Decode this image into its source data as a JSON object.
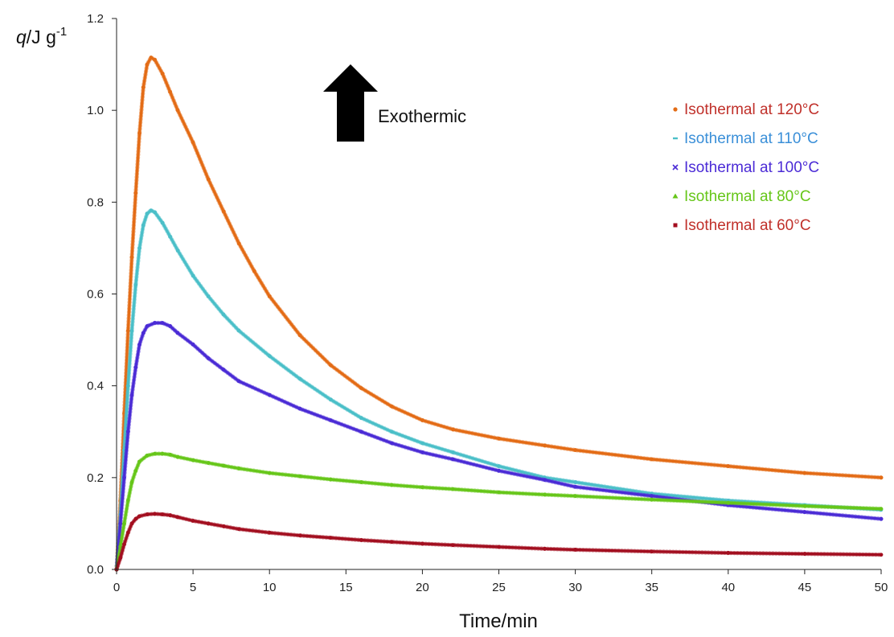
{
  "chart_data": {
    "type": "scatter",
    "xlabel": "Time/min",
    "ylabel": {
      "italic": "q",
      "main": "/J g",
      "sup": "-1"
    },
    "xlim": [
      0,
      50
    ],
    "ylim": [
      0,
      1.2
    ],
    "x_ticks": [
      "0",
      "5",
      "10",
      "15",
      "20",
      "25",
      "30",
      "35",
      "40",
      "45",
      "50"
    ],
    "y_ticks": [
      "0.0",
      "0.2",
      "0.4",
      "0.6",
      "0.8",
      "1.0",
      "1.2"
    ],
    "grid": false,
    "legend_position": "top-right",
    "annotation": {
      "text": "Exothermic",
      "marker": "up-arrow"
    },
    "series": [
      {
        "name": "Isothermal at 120°C",
        "color": "#E36C16",
        "label_color": "#C0302A",
        "marker": "circle",
        "points": [
          [
            0,
            0
          ],
          [
            0.25,
            0.15
          ],
          [
            0.5,
            0.34
          ],
          [
            0.75,
            0.52
          ],
          [
            1,
            0.68
          ],
          [
            1.25,
            0.82
          ],
          [
            1.5,
            0.95
          ],
          [
            1.75,
            1.05
          ],
          [
            2,
            1.1
          ],
          [
            2.25,
            1.115
          ],
          [
            2.5,
            1.11
          ],
          [
            3,
            1.08
          ],
          [
            3.5,
            1.04
          ],
          [
            4,
            1.0
          ],
          [
            5,
            0.93
          ],
          [
            6,
            0.85
          ],
          [
            7,
            0.78
          ],
          [
            8,
            0.71
          ],
          [
            9,
            0.65
          ],
          [
            10,
            0.595
          ],
          [
            12,
            0.51
          ],
          [
            14,
            0.445
          ],
          [
            16,
            0.395
          ],
          [
            18,
            0.355
          ],
          [
            20,
            0.325
          ],
          [
            22,
            0.305
          ],
          [
            25,
            0.285
          ],
          [
            28,
            0.27
          ],
          [
            30,
            0.26
          ],
          [
            35,
            0.24
          ],
          [
            40,
            0.225
          ],
          [
            45,
            0.21
          ],
          [
            50,
            0.2
          ]
        ]
      },
      {
        "name": "Isothermal at 110°C",
        "color": "#4BBFC8",
        "label_color": "#3A8FD8",
        "marker": "dash",
        "points": [
          [
            0,
            0
          ],
          [
            0.25,
            0.12
          ],
          [
            0.5,
            0.26
          ],
          [
            0.75,
            0.4
          ],
          [
            1,
            0.52
          ],
          [
            1.25,
            0.62
          ],
          [
            1.5,
            0.7
          ],
          [
            1.75,
            0.75
          ],
          [
            2,
            0.775
          ],
          [
            2.25,
            0.782
          ],
          [
            2.5,
            0.778
          ],
          [
            3,
            0.755
          ],
          [
            3.5,
            0.725
          ],
          [
            4,
            0.695
          ],
          [
            5,
            0.64
          ],
          [
            6,
            0.595
          ],
          [
            7,
            0.555
          ],
          [
            8,
            0.52
          ],
          [
            10,
            0.465
          ],
          [
            12,
            0.415
          ],
          [
            14,
            0.37
          ],
          [
            16,
            0.33
          ],
          [
            18,
            0.3
          ],
          [
            20,
            0.275
          ],
          [
            22,
            0.255
          ],
          [
            25,
            0.225
          ],
          [
            28,
            0.2
          ],
          [
            30,
            0.19
          ],
          [
            35,
            0.165
          ],
          [
            40,
            0.15
          ],
          [
            45,
            0.14
          ],
          [
            50,
            0.13
          ]
        ]
      },
      {
        "name": "Isothermal at 100°C",
        "color": "#4B2BD6",
        "label_color": "#4B2BD6",
        "marker": "x",
        "points": [
          [
            0,
            0
          ],
          [
            0.25,
            0.1
          ],
          [
            0.5,
            0.2
          ],
          [
            0.75,
            0.3
          ],
          [
            1,
            0.38
          ],
          [
            1.25,
            0.44
          ],
          [
            1.5,
            0.49
          ],
          [
            1.75,
            0.515
          ],
          [
            2,
            0.53
          ],
          [
            2.5,
            0.537
          ],
          [
            3,
            0.537
          ],
          [
            3.5,
            0.53
          ],
          [
            4,
            0.515
          ],
          [
            5,
            0.49
          ],
          [
            6,
            0.46
          ],
          [
            7,
            0.435
          ],
          [
            8,
            0.41
          ],
          [
            10,
            0.38
          ],
          [
            12,
            0.35
          ],
          [
            14,
            0.325
          ],
          [
            16,
            0.3
          ],
          [
            18,
            0.275
          ],
          [
            20,
            0.255
          ],
          [
            22,
            0.24
          ],
          [
            25,
            0.215
          ],
          [
            28,
            0.195
          ],
          [
            30,
            0.18
          ],
          [
            35,
            0.16
          ],
          [
            40,
            0.14
          ],
          [
            45,
            0.125
          ],
          [
            50,
            0.11
          ]
        ]
      },
      {
        "name": "Isothermal at 80°C",
        "color": "#66C619",
        "label_color": "#66C619",
        "marker": "triangle",
        "points": [
          [
            0,
            0
          ],
          [
            0.25,
            0.05
          ],
          [
            0.5,
            0.1
          ],
          [
            0.75,
            0.15
          ],
          [
            1,
            0.19
          ],
          [
            1.25,
            0.215
          ],
          [
            1.5,
            0.235
          ],
          [
            2,
            0.248
          ],
          [
            2.5,
            0.252
          ],
          [
            3,
            0.252
          ],
          [
            3.5,
            0.25
          ],
          [
            4,
            0.245
          ],
          [
            5,
            0.238
          ],
          [
            6,
            0.232
          ],
          [
            7,
            0.226
          ],
          [
            8,
            0.22
          ],
          [
            10,
            0.21
          ],
          [
            12,
            0.203
          ],
          [
            14,
            0.196
          ],
          [
            16,
            0.19
          ],
          [
            18,
            0.184
          ],
          [
            20,
            0.179
          ],
          [
            22,
            0.175
          ],
          [
            25,
            0.168
          ],
          [
            28,
            0.163
          ],
          [
            30,
            0.16
          ],
          [
            35,
            0.152
          ],
          [
            40,
            0.145
          ],
          [
            45,
            0.138
          ],
          [
            50,
            0.132
          ]
        ]
      },
      {
        "name": "Isothermal at 60°C",
        "color": "#A30E1F",
        "label_color": "#C0302A",
        "marker": "square",
        "points": [
          [
            0,
            0
          ],
          [
            0.25,
            0.025
          ],
          [
            0.5,
            0.055
          ],
          [
            0.75,
            0.08
          ],
          [
            1,
            0.1
          ],
          [
            1.25,
            0.11
          ],
          [
            1.5,
            0.116
          ],
          [
            2,
            0.12
          ],
          [
            2.5,
            0.121
          ],
          [
            3,
            0.12
          ],
          [
            3.5,
            0.118
          ],
          [
            4,
            0.114
          ],
          [
            5,
            0.106
          ],
          [
            6,
            0.1
          ],
          [
            7,
            0.094
          ],
          [
            8,
            0.088
          ],
          [
            10,
            0.08
          ],
          [
            12,
            0.074
          ],
          [
            14,
            0.069
          ],
          [
            16,
            0.064
          ],
          [
            18,
            0.06
          ],
          [
            20,
            0.056
          ],
          [
            22,
            0.053
          ],
          [
            25,
            0.049
          ],
          [
            28,
            0.045
          ],
          [
            30,
            0.043
          ],
          [
            35,
            0.039
          ],
          [
            40,
            0.036
          ],
          [
            45,
            0.034
          ],
          [
            50,
            0.032
          ]
        ]
      }
    ]
  }
}
